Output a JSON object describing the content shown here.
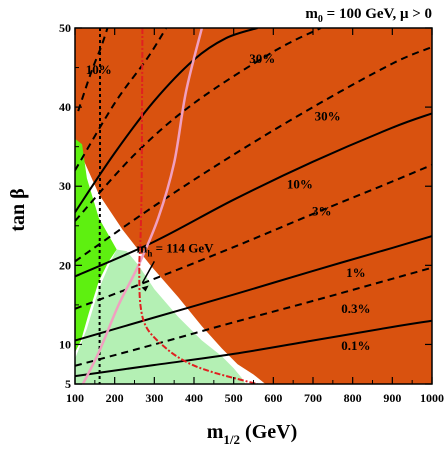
{
  "chart_data": {
    "type": "area",
    "title": "m",
    "title_sub": "0",
    "title_rest": " = 100 GeV,  μ > 0",
    "xlabel": "m",
    "xlabel_sub": "1/2",
    "xlabel_unit": " (GeV)",
    "ylabel": "tan β",
    "xlim": [
      100,
      1000
    ],
    "ylim": [
      5,
      50
    ],
    "x_ticks": [
      100,
      200,
      300,
      400,
      500,
      600,
      700,
      800,
      900,
      1000
    ],
    "y_ticks": [
      5,
      10,
      20,
      30,
      40,
      50
    ],
    "colors": {
      "excluded": "#d9520f",
      "green": "#5ef010",
      "lightgreen": "#b4f0b4",
      "pink": "#f0a0c0",
      "red": "#e02020"
    },
    "regions": [
      {
        "name": "excluded",
        "color": "#d9520f"
      },
      {
        "name": "bright-green",
        "color": "#5ef010"
      },
      {
        "name": "light-green",
        "color": "#b4f0b4"
      }
    ],
    "contours": [
      {
        "label": "0.1%",
        "style": "solid",
        "label_x": 808,
        "label_y": 9.3,
        "points": [
          [
            100,
            6.0
          ],
          [
            300,
            7.4
          ],
          [
            500,
            8.8
          ],
          [
            700,
            10.5
          ],
          [
            900,
            12.2
          ],
          [
            1000,
            13.0
          ]
        ]
      },
      {
        "label": "0.3%",
        "style": "dashed",
        "label_x": 808,
        "label_y": 14.0,
        "points": [
          [
            100,
            7.3
          ],
          [
            300,
            10.0
          ],
          [
            500,
            12.8
          ],
          [
            700,
            15.5
          ],
          [
            900,
            18.3
          ],
          [
            1000,
            19.7
          ]
        ]
      },
      {
        "label": "1%",
        "style": "solid",
        "label_x": 808,
        "label_y": 18.5,
        "points": [
          [
            100,
            10.5
          ],
          [
            300,
            13.4
          ],
          [
            500,
            16.3
          ],
          [
            700,
            19.3
          ],
          [
            900,
            22.2
          ],
          [
            1000,
            23.7
          ]
        ]
      },
      {
        "label": "3%",
        "style": "dashed",
        "label_x": 722,
        "label_y": 26.3,
        "points": [
          [
            100,
            14.5
          ],
          [
            300,
            18.3
          ],
          [
            500,
            22.3
          ],
          [
            700,
            26.5
          ],
          [
            900,
            30.6
          ],
          [
            1000,
            32.7
          ]
        ]
      },
      {
        "label": "10%",
        "style": "solid",
        "label_x": 667,
        "label_y": 29.7,
        "points": [
          [
            100,
            18.6
          ],
          [
            300,
            23.0
          ],
          [
            500,
            28.3
          ],
          [
            700,
            33.1
          ],
          [
            900,
            37.4
          ],
          [
            1000,
            39.2
          ]
        ]
      },
      {
        "label": "30%",
        "style": "dashed",
        "label_x": 737,
        "label_y": 38.3,
        "points": [
          [
            100,
            20.5
          ],
          [
            300,
            27.5
          ],
          [
            500,
            34.0
          ],
          [
            700,
            40.0
          ],
          [
            900,
            45.5
          ],
          [
            1000,
            47.6
          ]
        ]
      },
      {
        "label": "30%",
        "style": "dashed",
        "label_x": 572,
        "label_y": 45.6,
        "points": [
          [
            100,
            25.6
          ],
          [
            250,
            34.0
          ],
          [
            400,
            40.5
          ],
          [
            600,
            47.0
          ],
          [
            720,
            50.0
          ]
        ]
      },
      {
        "label": "10%",
        "style": "solid",
        "label_x": 160,
        "label_y": 44.2,
        "points": [
          [
            100,
            26.7
          ],
          [
            200,
            34.2
          ],
          [
            300,
            40.8
          ],
          [
            400,
            46.0
          ],
          [
            480,
            48.7
          ],
          [
            560,
            50.0
          ]
        ]
      },
      {
        "label": "",
        "style": "dashed",
        "points": [
          [
            100,
            32.0
          ],
          [
            200,
            40.5
          ],
          [
            280,
            46.0
          ],
          [
            330,
            50.0
          ]
        ]
      },
      {
        "label": "",
        "style": "dashed",
        "points": [
          [
            108,
            39.5
          ],
          [
            140,
            44.3
          ],
          [
            165,
            47.5
          ],
          [
            182,
            50.0
          ]
        ]
      }
    ],
    "higgs_line": {
      "label": "m",
      "label_sub": "h",
      "label_rest": " = 114 GeV",
      "color": "#e02020",
      "points": [
        [
          270,
          50.0
        ],
        [
          269,
          40.0
        ],
        [
          268,
          30.0
        ],
        [
          265,
          23.0
        ],
        [
          262,
          20.0
        ],
        [
          265,
          15.0
        ],
        [
          282,
          12.0
        ],
        [
          330,
          9.5
        ],
        [
          380,
          7.8
        ],
        [
          440,
          6.6
        ],
        [
          520,
          5.5
        ],
        [
          560,
          5.0
        ]
      ]
    },
    "gm2_line": {
      "color": "#f0a0c0",
      "points": [
        [
          120,
          5.0
        ],
        [
          160,
          9.0
        ],
        [
          210,
          15.0
        ],
        [
          260,
          20.0
        ],
        [
          310,
          26.0
        ],
        [
          350,
          33.0
        ],
        [
          380,
          42.0
        ],
        [
          420,
          50.0
        ]
      ]
    },
    "b_dashed_line": {
      "color": "#000000",
      "points": [
        [
          163,
          50.0
        ],
        [
          163,
          30.0
        ],
        [
          162,
          20.0
        ],
        [
          162,
          5.0
        ]
      ]
    }
  }
}
